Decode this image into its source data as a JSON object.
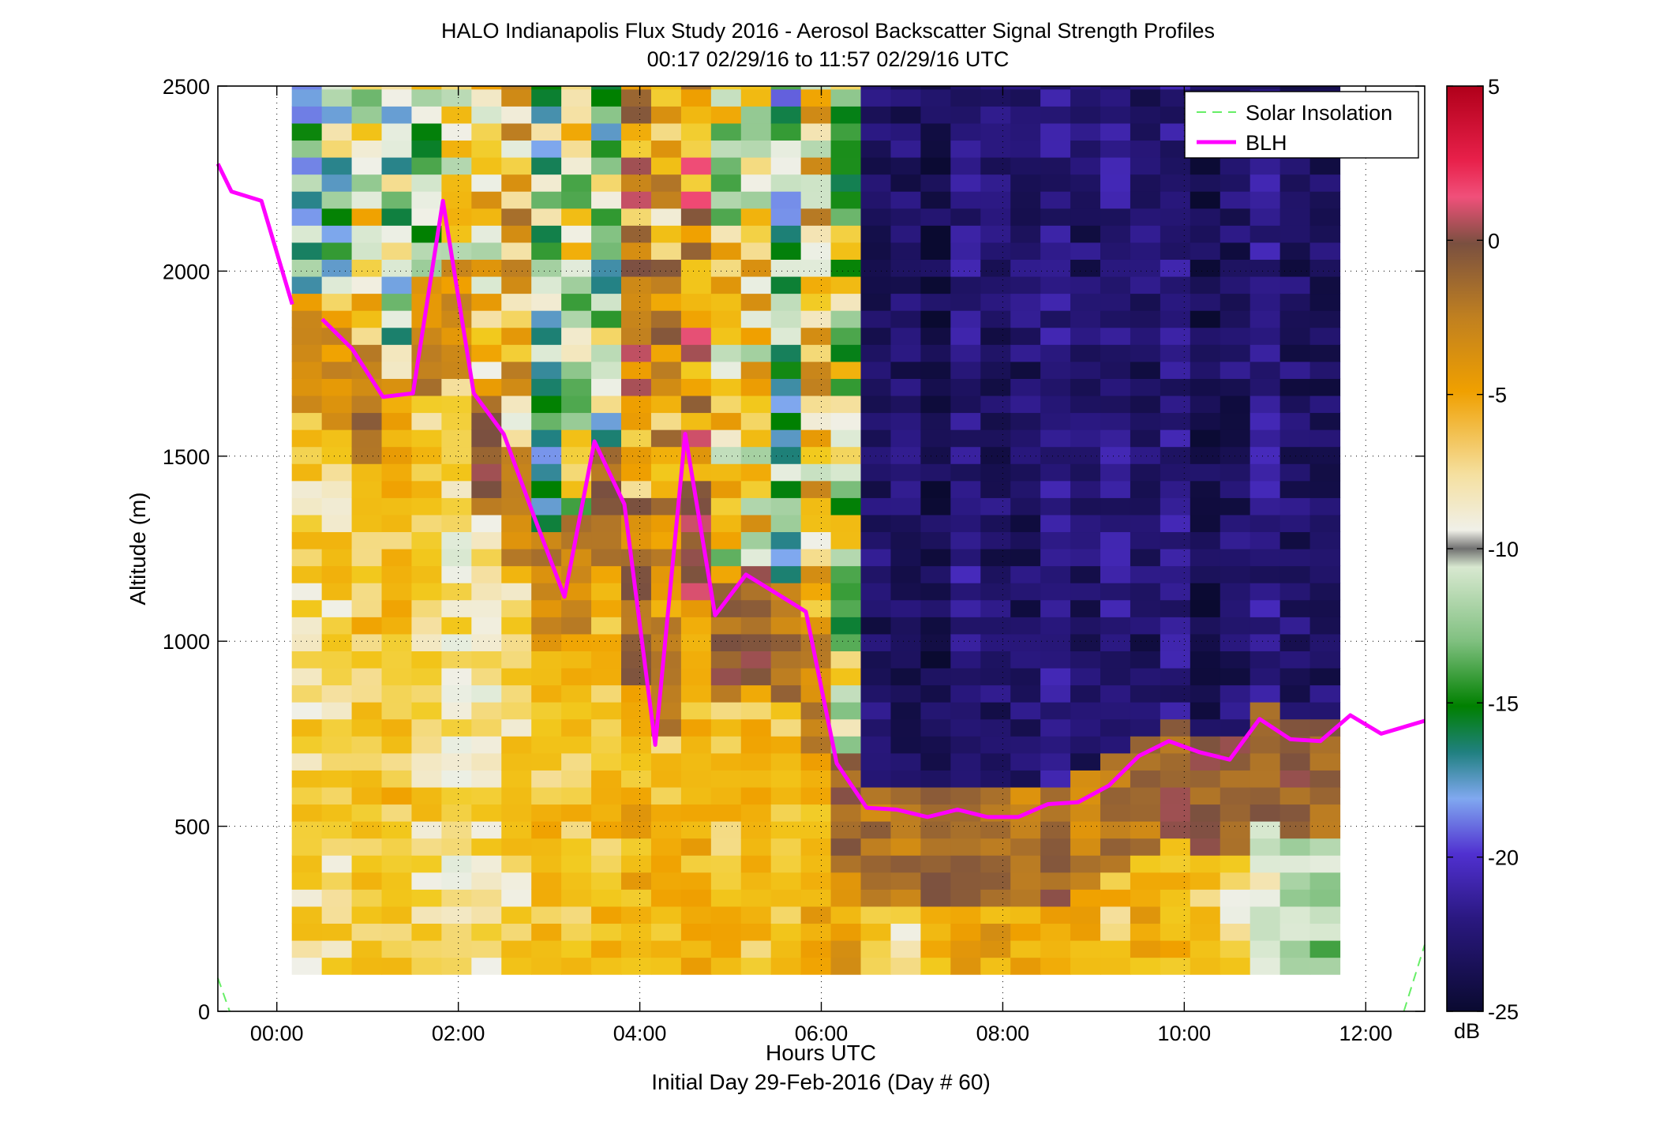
{
  "title": "HALO Indianapolis Flux Study 2016 - Aerosol Backscatter Signal Strength Profiles",
  "subtitle": "00:17 02/29/16 to 11:57 02/29/16  UTC",
  "footer": "Initial Day 29-Feb-2016 (Day # 60)",
  "chart_data": {
    "type": "heatmap",
    "title": "HALO Indianapolis Flux Study 2016 - Aerosol Backscatter Signal Strength Profiles",
    "subtitle": "00:17 02/29/16 to 11:57 02/29/16  UTC",
    "xlabel": "Hours UTC",
    "ylabel": "Altitude (m)",
    "xlim": [
      -0.65,
      12.65
    ],
    "ylim": [
      0,
      2500
    ],
    "x_ticks": [
      0,
      2,
      4,
      6,
      8,
      10,
      12
    ],
    "x_tick_labels": [
      "00:00",
      "02:00",
      "04:00",
      "06:00",
      "08:00",
      "10:00",
      "12:00"
    ],
    "y_ticks": [
      0,
      500,
      1000,
      1500,
      2000,
      2500
    ],
    "y_tick_labels": [
      "0",
      "500",
      "1000",
      "1500",
      "2000",
      "2500"
    ],
    "grid": true,
    "colorbar": {
      "label": "dB",
      "range": [
        -25,
        5
      ],
      "ticks": [
        5,
        0,
        -5,
        -10,
        -15,
        -20,
        -25
      ],
      "tick_labels": [
        "5",
        "0",
        "-5",
        "-10",
        "-15",
        "-20",
        "-25"
      ]
    },
    "heatmap": {
      "time_start": 0.33,
      "time_step": 0.33,
      "n_profiles": 35,
      "alt_start": 100,
      "alt_step": 46,
      "blh_offset": [
        -4,
        -4,
        -2,
        -5,
        -3,
        -4,
        -1,
        -3,
        -3,
        -3,
        -1,
        -1,
        -3,
        0,
        -1,
        -1,
        -2,
        -3,
        -1,
        -2,
        -2,
        -1,
        -1,
        -2,
        -3,
        -1,
        -3,
        -2,
        -2,
        -1,
        -1,
        -1,
        -1,
        -1,
        -1
      ],
      "aloft_value_by_profile": [
        -14,
        -13,
        -9,
        -13,
        -11,
        -11,
        -8,
        -6,
        -14,
        -10,
        -13,
        -4,
        -5,
        -3,
        -9,
        -8,
        -15,
        -7,
        -11,
        -23,
        -23,
        -24,
        -22,
        -23,
        -23,
        -22,
        -23,
        -22,
        -23,
        -22,
        -24,
        -23,
        -22,
        -23,
        -23
      ],
      "surface_value_by_profile": [
        -8,
        -8,
        -7,
        -7,
        -8,
        -9,
        -9,
        -8,
        -7,
        -7,
        -7,
        -6,
        -7,
        -6,
        -7,
        -7,
        -7,
        -6,
        -5,
        -7,
        -8,
        -6,
        -6,
        -5,
        -6,
        -6,
        -5,
        -7,
        -6,
        -7,
        -7,
        -9,
        -11,
        -12,
        -12
      ]
    },
    "legend": {
      "placement": "top-right",
      "entries": [
        "Solar Insolation",
        "BLH"
      ]
    },
    "series": [
      {
        "name": "BLH",
        "color": "#ff00ff",
        "segments": [
          [
            {
              "x": -0.65,
              "y": 2290
            },
            {
              "x": -0.5,
              "y": 2215
            },
            {
              "x": -0.17,
              "y": 2190
            },
            {
              "x": 0.17,
              "y": 1910
            }
          ],
          [
            {
              "x": 0.5,
              "y": 1870
            },
            {
              "x": 0.83,
              "y": 1790
            },
            {
              "x": 1.17,
              "y": 1660
            },
            {
              "x": 1.5,
              "y": 1670
            },
            {
              "x": 1.83,
              "y": 2190
            },
            {
              "x": 2.17,
              "y": 1670
            },
            {
              "x": 2.5,
              "y": 1560
            },
            {
              "x": 2.83,
              "y": 1340
            },
            {
              "x": 3.17,
              "y": 1120
            },
            {
              "x": 3.5,
              "y": 1540
            },
            {
              "x": 3.83,
              "y": 1370
            },
            {
              "x": 4.17,
              "y": 720
            },
            {
              "x": 4.5,
              "y": 1560
            },
            {
              "x": 4.83,
              "y": 1070
            },
            {
              "x": 5.17,
              "y": 1180
            },
            {
              "x": 5.5,
              "y": 1130
            },
            {
              "x": 5.83,
              "y": 1080
            },
            {
              "x": 6.17,
              "y": 670
            },
            {
              "x": 6.5,
              "y": 550
            },
            {
              "x": 6.83,
              "y": 545
            },
            {
              "x": 7.17,
              "y": 525
            },
            {
              "x": 7.5,
              "y": 545
            },
            {
              "x": 7.83,
              "y": 525
            },
            {
              "x": 8.17,
              "y": 525
            },
            {
              "x": 8.5,
              "y": 560
            },
            {
              "x": 8.83,
              "y": 565
            },
            {
              "x": 9.17,
              "y": 610
            },
            {
              "x": 9.5,
              "y": 690
            },
            {
              "x": 9.83,
              "y": 730
            },
            {
              "x": 10.17,
              "y": 700
            },
            {
              "x": 10.5,
              "y": 680
            },
            {
              "x": 10.83,
              "y": 790
            },
            {
              "x": 11.17,
              "y": 735
            },
            {
              "x": 11.5,
              "y": 730
            },
            {
              "x": 11.83,
              "y": 800
            },
            {
              "x": 12.17,
              "y": 750
            },
            {
              "x": 12.65,
              "y": 785
            }
          ]
        ]
      },
      {
        "name": "Solar Insolation",
        "color": "#66ee66",
        "style": "dashed",
        "segments": [
          [
            {
              "x": -0.65,
              "y": 90
            },
            {
              "x": -0.52,
              "y": 0
            }
          ],
          [
            {
              "x": 12.42,
              "y": 0
            },
            {
              "x": 12.65,
              "y": 180
            }
          ]
        ]
      }
    ]
  }
}
